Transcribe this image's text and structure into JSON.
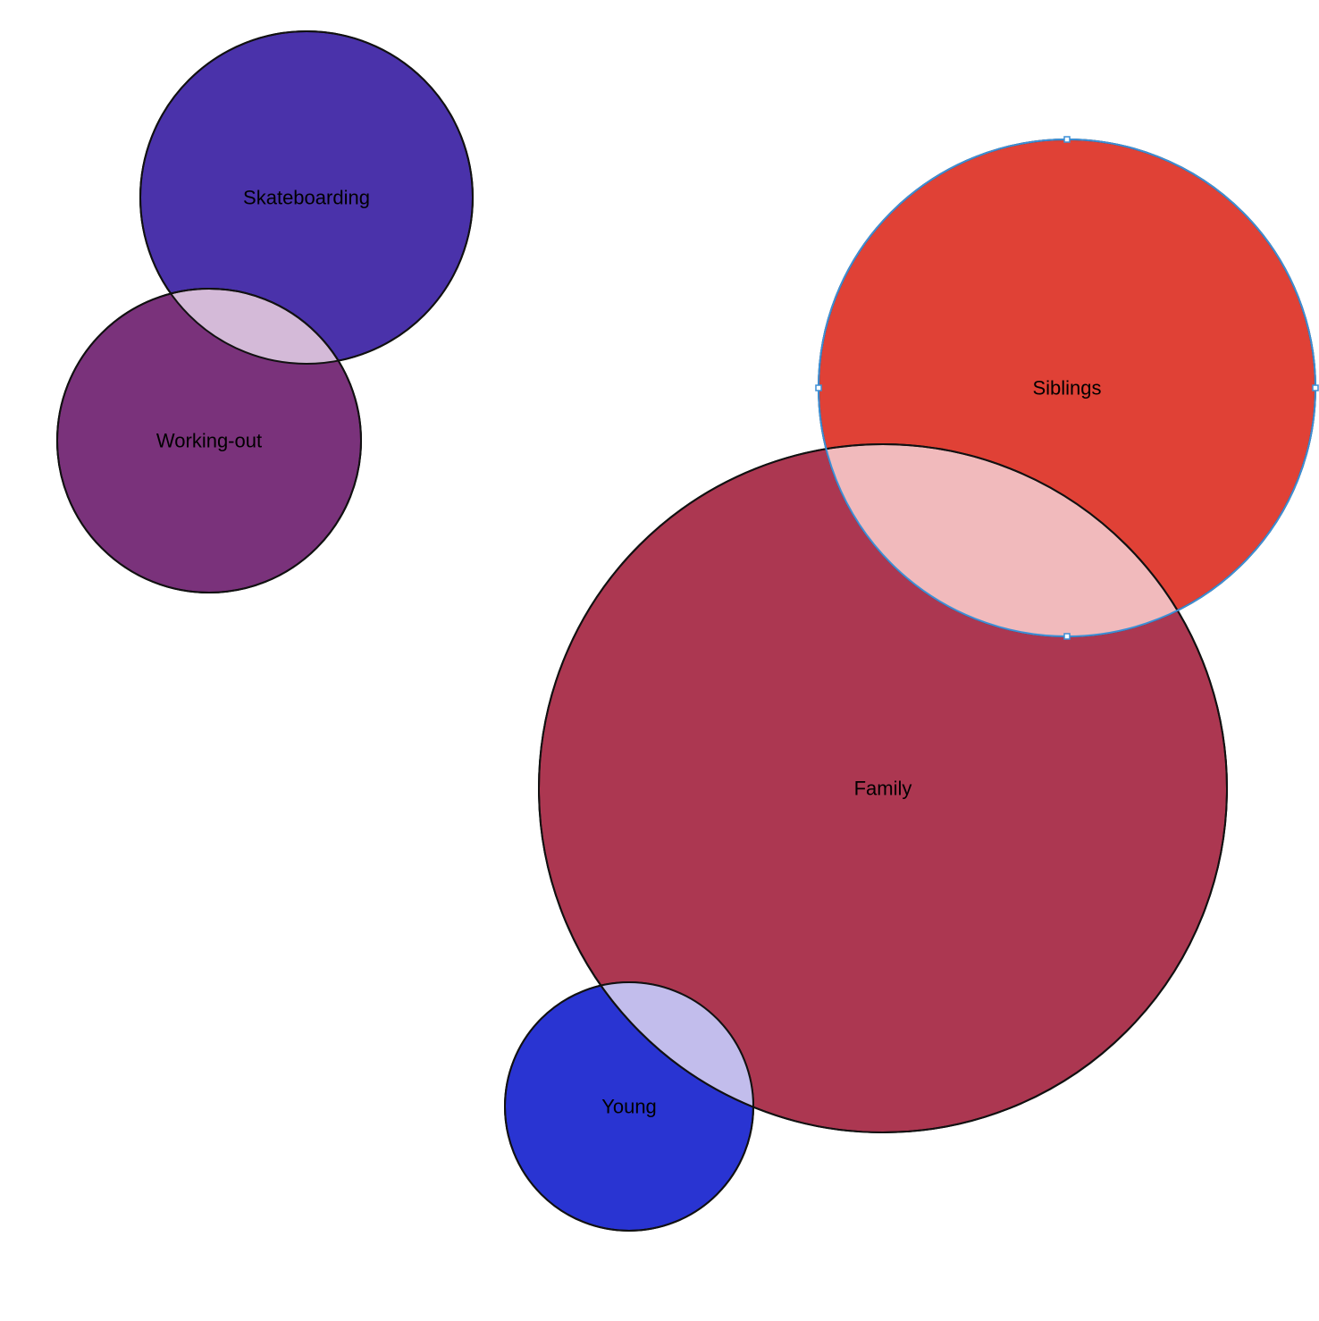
{
  "diagram": {
    "circles": [
      {
        "id": "skateboarding",
        "label": "Skateboarding",
        "color": "#4a32aa"
      },
      {
        "id": "working-out",
        "label": "Working-out",
        "color": "#7a327b"
      },
      {
        "id": "siblings",
        "label": "Siblings",
        "color": "#e04136",
        "selected": true
      },
      {
        "id": "family",
        "label": "Family",
        "color": "#ac3751"
      },
      {
        "id": "young",
        "label": "Young",
        "color": "#2934d2"
      }
    ],
    "overlaps": [
      {
        "between": [
          "skateboarding",
          "working-out"
        ],
        "color": "#d4bad8"
      },
      {
        "between": [
          "family",
          "siblings"
        ],
        "color": "#f1babc"
      },
      {
        "between": [
          "family",
          "young"
        ],
        "color": "#c2bdec"
      }
    ],
    "selection_color": "#3d8fd6"
  }
}
